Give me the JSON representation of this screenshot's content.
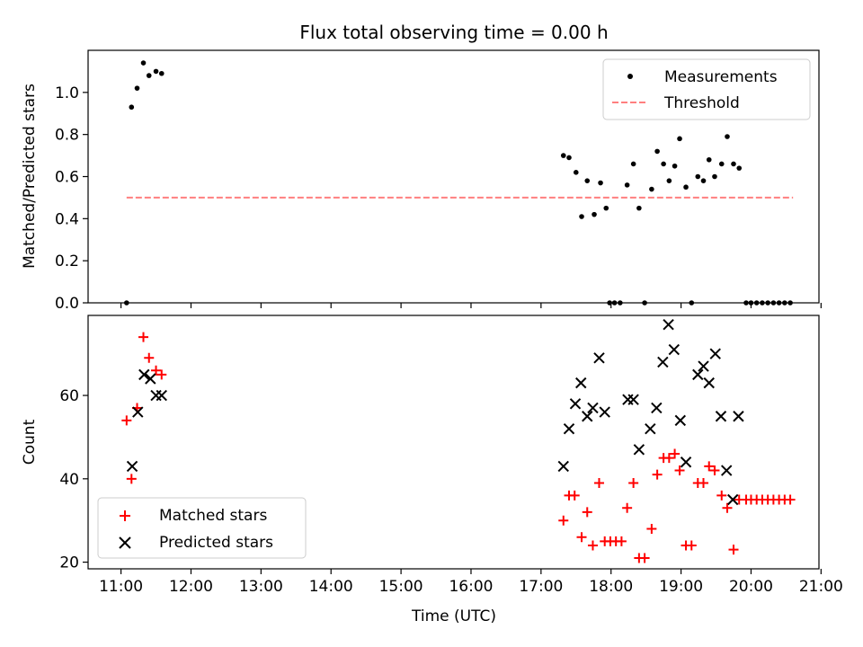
{
  "chart_data": [
    {
      "type": "scatter",
      "title": "Flux total observing time = 0.00 h",
      "xlabel": "",
      "ylabel": "Matched/Predicted stars",
      "xlim": [
        10.53,
        20.97
      ],
      "ylim": [
        0.0,
        1.2
      ],
      "y_ticks": [
        0.0,
        0.2,
        0.4,
        0.6,
        0.8,
        1.0
      ],
      "y_tick_labels": [
        "0.0",
        "0.2",
        "0.4",
        "0.6",
        "0.8",
        "1.0"
      ],
      "grid": false,
      "legend_position": "top-right",
      "series": [
        {
          "name": "Measurements",
          "kind": "points",
          "marker": "dot",
          "color": "#000000",
          "points": [
            [
              11.08,
              0.0
            ],
            [
              11.15,
              0.93
            ],
            [
              11.23,
              1.02
            ],
            [
              11.32,
              1.14
            ],
            [
              11.4,
              1.08
            ],
            [
              11.5,
              1.1
            ],
            [
              11.58,
              1.09
            ],
            [
              17.32,
              0.7
            ],
            [
              17.4,
              0.69
            ],
            [
              17.5,
              0.62
            ],
            [
              17.58,
              0.41
            ],
            [
              17.66,
              0.58
            ],
            [
              17.76,
              0.42
            ],
            [
              17.85,
              0.57
            ],
            [
              17.93,
              0.45
            ],
            [
              17.98,
              0.0
            ],
            [
              18.05,
              0.0
            ],
            [
              18.13,
              0.0
            ],
            [
              18.23,
              0.56
            ],
            [
              18.32,
              0.66
            ],
            [
              18.4,
              0.45
            ],
            [
              18.48,
              0.0
            ],
            [
              18.58,
              0.54
            ],
            [
              18.66,
              0.72
            ],
            [
              18.75,
              0.66
            ],
            [
              18.83,
              0.58
            ],
            [
              18.91,
              0.65
            ],
            [
              18.98,
              0.78
            ],
            [
              19.07,
              0.55
            ],
            [
              19.15,
              0.0
            ],
            [
              19.24,
              0.6
            ],
            [
              19.32,
              0.58
            ],
            [
              19.4,
              0.68
            ],
            [
              19.48,
              0.6
            ],
            [
              19.58,
              0.66
            ],
            [
              19.66,
              0.79
            ],
            [
              19.75,
              0.66
            ],
            [
              19.83,
              0.64
            ],
            [
              19.93,
              0.0
            ],
            [
              20.0,
              0.0
            ],
            [
              20.08,
              0.0
            ],
            [
              20.16,
              0.0
            ],
            [
              20.24,
              0.0
            ],
            [
              20.32,
              0.0
            ],
            [
              20.4,
              0.0
            ],
            [
              20.48,
              0.0
            ],
            [
              20.56,
              0.0
            ]
          ]
        },
        {
          "name": "Threshold",
          "kind": "dashed-line",
          "color": "#ff7f7f",
          "points": [
            [
              11.08,
              0.5
            ],
            [
              20.6,
              0.5
            ]
          ]
        }
      ]
    },
    {
      "type": "scatter",
      "title": "",
      "xlabel": "Time (UTC)",
      "ylabel": "Count",
      "xlim": [
        10.53,
        20.97
      ],
      "ylim": [
        18.4,
        79.2
      ],
      "x_ticks": [
        11,
        12,
        13,
        14,
        15,
        16,
        17,
        18,
        19,
        20,
        21
      ],
      "x_tick_labels": [
        "11:00",
        "12:00",
        "13:00",
        "14:00",
        "15:00",
        "16:00",
        "17:00",
        "18:00",
        "19:00",
        "20:00",
        "21:00"
      ],
      "y_ticks": [
        20,
        40,
        60
      ],
      "y_tick_labels": [
        "20",
        "40",
        "60"
      ],
      "grid": false,
      "legend_position": "bottom-left",
      "series": [
        {
          "name": "Matched stars",
          "kind": "points",
          "marker": "plus",
          "color": "#ff0000",
          "points": [
            [
              11.08,
              54
            ],
            [
              11.15,
              40
            ],
            [
              11.23,
              57
            ],
            [
              11.32,
              74
            ],
            [
              11.4,
              69
            ],
            [
              11.5,
              66
            ],
            [
              11.58,
              65
            ],
            [
              17.32,
              30
            ],
            [
              17.4,
              36
            ],
            [
              17.48,
              36
            ],
            [
              17.58,
              26
            ],
            [
              17.66,
              32
            ],
            [
              17.74,
              24
            ],
            [
              17.83,
              39
            ],
            [
              17.91,
              25
            ],
            [
              17.99,
              25
            ],
            [
              18.07,
              25
            ],
            [
              18.15,
              25
            ],
            [
              18.23,
              33
            ],
            [
              18.32,
              39
            ],
            [
              18.4,
              21
            ],
            [
              18.48,
              21
            ],
            [
              18.58,
              28
            ],
            [
              18.66,
              41
            ],
            [
              18.75,
              45
            ],
            [
              18.83,
              45
            ],
            [
              18.91,
              46
            ],
            [
              18.98,
              42
            ],
            [
              19.07,
              24
            ],
            [
              19.15,
              24
            ],
            [
              19.24,
              39
            ],
            [
              19.32,
              39
            ],
            [
              19.4,
              43
            ],
            [
              19.48,
              42
            ],
            [
              19.58,
              36
            ],
            [
              19.66,
              33
            ],
            [
              19.75,
              23
            ],
            [
              19.83,
              35
            ],
            [
              19.93,
              35
            ],
            [
              20.0,
              35
            ],
            [
              20.08,
              35
            ],
            [
              20.16,
              35
            ],
            [
              20.24,
              35
            ],
            [
              20.32,
              35
            ],
            [
              20.4,
              35
            ],
            [
              20.48,
              35
            ],
            [
              20.56,
              35
            ]
          ]
        },
        {
          "name": "Predicted stars",
          "kind": "points",
          "marker": "x",
          "color": "#000000",
          "points": [
            [
              11.16,
              43
            ],
            [
              11.24,
              56
            ],
            [
              11.33,
              65
            ],
            [
              11.42,
              64
            ],
            [
              11.5,
              60
            ],
            [
              11.58,
              60
            ],
            [
              17.32,
              43
            ],
            [
              17.4,
              52
            ],
            [
              17.49,
              58
            ],
            [
              17.57,
              63
            ],
            [
              17.66,
              55
            ],
            [
              17.74,
              57
            ],
            [
              17.83,
              69
            ],
            [
              17.91,
              56
            ],
            [
              18.24,
              59
            ],
            [
              18.32,
              59
            ],
            [
              18.4,
              47
            ],
            [
              18.56,
              52
            ],
            [
              18.65,
              57
            ],
            [
              18.74,
              68
            ],
            [
              18.82,
              77
            ],
            [
              18.9,
              71
            ],
            [
              18.99,
              54
            ],
            [
              19.07,
              44
            ],
            [
              19.24,
              65
            ],
            [
              19.32,
              67
            ],
            [
              19.4,
              63
            ],
            [
              19.49,
              70
            ],
            [
              19.57,
              55
            ],
            [
              19.65,
              42
            ],
            [
              19.74,
              35
            ],
            [
              19.82,
              55
            ]
          ]
        }
      ]
    }
  ]
}
